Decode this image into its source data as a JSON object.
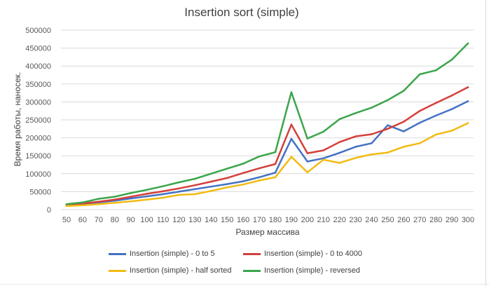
{
  "chart_data": {
    "type": "line",
    "title": "Insertion sort (simple)",
    "xlabel": "Размер массива",
    "ylabel": "Время работы, наносек.",
    "ylim": [
      0,
      500000
    ],
    "yticks": [
      "0",
      "50000",
      "100000",
      "150000",
      "200000",
      "250000",
      "300000",
      "350000",
      "400000",
      "450000",
      "500000"
    ],
    "grid": true,
    "legend_position": "bottom",
    "categories": [
      "50",
      "60",
      "70",
      "80",
      "90",
      "100",
      "110",
      "120",
      "130",
      "140",
      "150",
      "160",
      "170",
      "180",
      "190",
      "200",
      "210",
      "220",
      "230",
      "240",
      "250",
      "260",
      "270",
      "280",
      "290",
      "300"
    ],
    "series": [
      {
        "name": "Insertion (simple) - 0 to 5",
        "color": "#4472C4",
        "values": [
          13000,
          16000,
          20000,
          25000,
          31000,
          37000,
          43000,
          50000,
          57000,
          64000,
          71000,
          79000,
          90000,
          103000,
          197000,
          134000,
          143000,
          158000,
          175000,
          185000,
          235000,
          218000,
          242000,
          262000,
          280000,
          302000
        ]
      },
      {
        "name": "Insertion (simple) - 0 to 4000",
        "color": "#D43F3A",
        "values": [
          13000,
          17000,
          22000,
          28000,
          36000,
          44000,
          51000,
          59000,
          68000,
          78000,
          88000,
          102000,
          115000,
          127000,
          237000,
          157000,
          165000,
          188000,
          204000,
          210000,
          225000,
          245000,
          275000,
          297000,
          318000,
          341000
        ]
      },
      {
        "name": "Insertion (simple) - half sorted",
        "color": "#F2BB13",
        "values": [
          10000,
          12000,
          15000,
          19000,
          23000,
          28000,
          33000,
          41000,
          43000,
          52000,
          62000,
          70000,
          81000,
          90000,
          147000,
          104000,
          139000,
          130000,
          144000,
          154000,
          159000,
          175000,
          185000,
          209000,
          220000,
          241000
        ]
      },
      {
        "name": "Insertion (simple) - reversed",
        "color": "#3BA54A",
        "values": [
          15000,
          20000,
          30000,
          36000,
          46000,
          55000,
          65000,
          76000,
          86000,
          100000,
          114000,
          128000,
          148000,
          160000,
          327000,
          198000,
          217000,
          252000,
          269000,
          284000,
          305000,
          331000,
          377000,
          388000,
          418000,
          463000
        ]
      }
    ]
  }
}
